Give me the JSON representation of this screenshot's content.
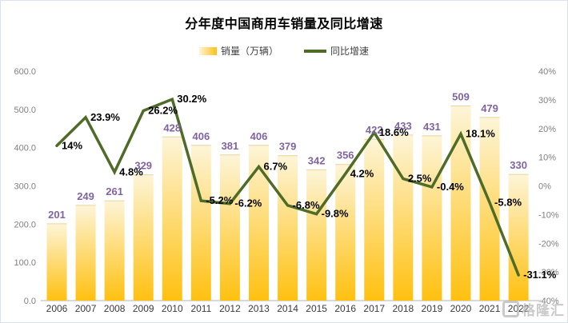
{
  "title": "分年度中国商用车销量及同比增速",
  "legend": [
    {
      "label": "销量（万辆）",
      "type": "bar"
    },
    {
      "label": "同比增速",
      "type": "line"
    }
  ],
  "watermark": {
    "text": "格隆汇"
  },
  "colors": {
    "bar_top": "#fdf5d8",
    "bar_bottom": "#ffc010",
    "bar_edge": "#e7d49f",
    "bar_label": "#8064a2",
    "line": "#4f6b28",
    "line_label": "#000000",
    "axis_label": "#808080",
    "x_label": "#3a3a3a",
    "axis_line": "#d9d9d9",
    "frame_border": "#d9e2ef",
    "watermark": "#b5b5b5"
  },
  "chart_data": {
    "type": "bar+line",
    "title": "分年度中国商用车销量及同比增速",
    "grid": false,
    "legend_position": "top",
    "categories": [
      "2006",
      "2007",
      "2008",
      "2009",
      "2010",
      "2011",
      "2012",
      "2013",
      "2014",
      "2015",
      "2016",
      "2017",
      "2018",
      "2019",
      "2020",
      "2021",
      "2022"
    ],
    "series": [
      {
        "name": "销量（万辆）",
        "type": "bar",
        "axis": "left",
        "values": [
          201,
          249,
          261,
          329,
          428,
          406,
          381,
          406,
          379,
          342,
          356,
          422,
          433,
          431,
          509,
          479,
          330
        ]
      },
      {
        "name": "同比增速",
        "type": "line",
        "axis": "right",
        "values": [
          14,
          23.9,
          4.8,
          26.2,
          30.2,
          -5.2,
          -6.2,
          6.7,
          -6.8,
          -9.8,
          4.2,
          18.6,
          2.5,
          -0.4,
          18.1,
          -5.8,
          -31.1
        ],
        "labels": [
          "14%",
          "23.9%",
          "4.8%",
          "26.2%",
          "30.2%",
          "-5.2%",
          "-6.2%",
          "6.7%",
          "-6.8%",
          "-9.8%",
          "4.2%",
          "18.6%",
          "2.5%",
          "-0.4%",
          "18.1%",
          "-5.8%",
          "-31.1%"
        ]
      }
    ],
    "axes": {
      "left": {
        "min": 0,
        "max": 600,
        "ticks": [
          {
            "label": "600.0",
            "value": 600
          },
          {
            "label": "500.0",
            "value": 500
          },
          {
            "label": "400.0",
            "value": 400
          },
          {
            "label": "300.0",
            "value": 300
          },
          {
            "label": "200.0",
            "value": 200
          },
          {
            "label": "100.0",
            "value": 100
          },
          {
            "label": "0.0",
            "value": 0
          }
        ]
      },
      "right": {
        "min": -40,
        "max": 40,
        "ticks": [
          {
            "label": "40%",
            "value": 40
          },
          {
            "label": "30%",
            "value": 30
          },
          {
            "label": "20%",
            "value": 20
          },
          {
            "label": "10%",
            "value": 10
          },
          {
            "label": "0%",
            "value": 0
          },
          {
            "label": "-10%",
            "value": -10
          },
          {
            "label": "-20%",
            "value": -20
          },
          {
            "label": "-30%",
            "value": -30
          },
          {
            "label": "-40%",
            "value": -40
          }
        ]
      }
    }
  }
}
